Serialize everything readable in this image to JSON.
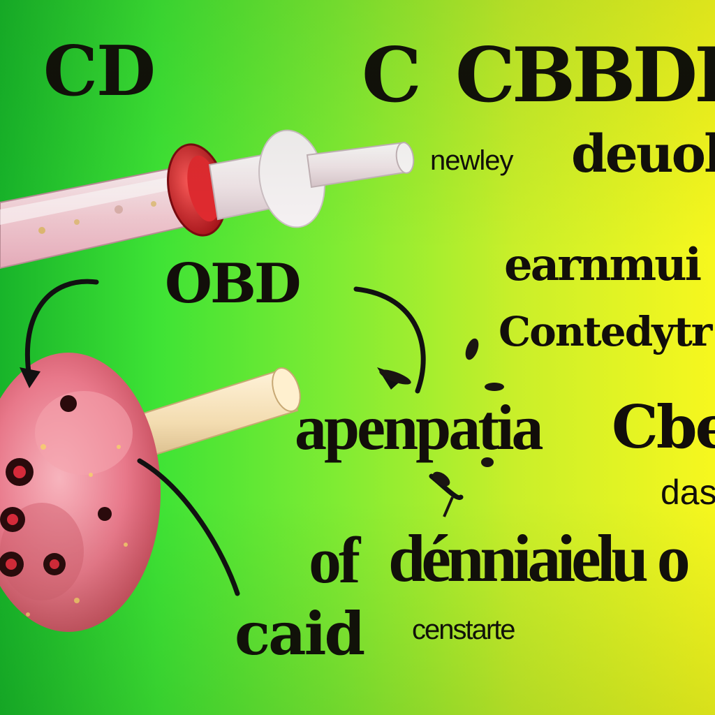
{
  "background": {
    "gradient_colors": [
      "#18b42a",
      "#3ee335",
      "#82ec33",
      "#c9ef2a",
      "#f7f71e"
    ]
  },
  "words": {
    "cd": "CD",
    "c": "C",
    "cbbd": "CBBDI",
    "newley": "newley",
    "deuol": "deuol",
    "obd": "OBD",
    "earnmui": "earnmui",
    "contedytr": "Contedytr",
    "apenpatia": "apenpatia",
    "cbe": "Cbe",
    "das": "das",
    "of": "of",
    "denniaieluo": "dénniaielu o",
    "caid": "caid",
    "censtarte": "censtarte"
  },
  "illustrations": {
    "top": "dropper-syringe",
    "left": "flower-bud-on-stick",
    "accent_colors": {
      "cap_red": "#c8141c",
      "bud_pink": "#e8788a",
      "stick_cream": "#f3dcb0",
      "tube_white": "#f6f1f3"
    }
  }
}
